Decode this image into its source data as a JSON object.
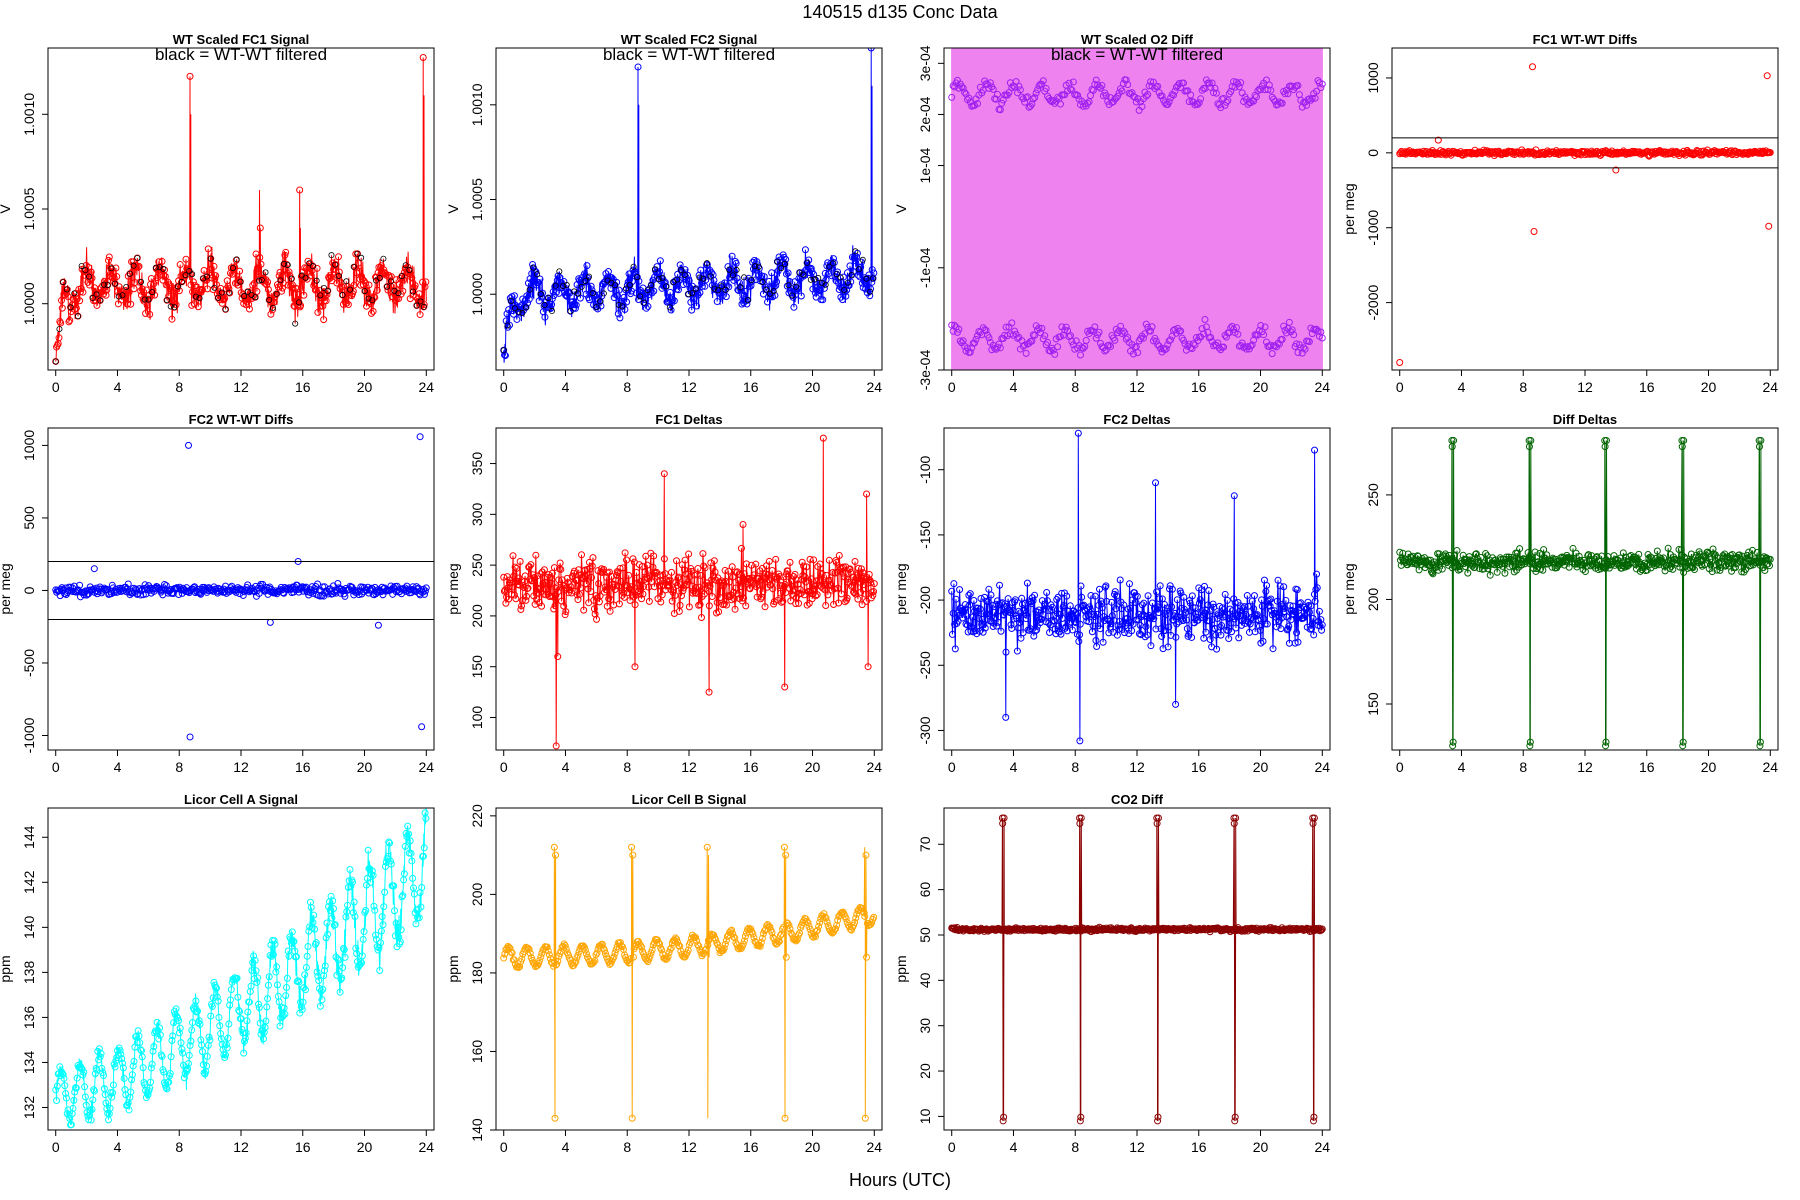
{
  "figure": {
    "suptitle": "140515   d135   Conc Data",
    "xlabel": "Hours (UTC)",
    "note": "black = WT-WT filtered"
  },
  "chart_data": [
    {
      "id": "p1",
      "type": "line",
      "title": "WT Scaled FC1 Signal",
      "ylabel": "V",
      "color": "#ff0000",
      "ylim": [
        0.99965,
        1.00135
      ],
      "yticks": [
        1.0,
        1.0005,
        1.001
      ],
      "ytick_labels": [
        "1.0000",
        "1.0005",
        "1.0010"
      ],
      "note": true,
      "generator": {
        "kind": "noisy_signal",
        "base": 1.00012,
        "wave_amp": 0.0001,
        "wave_period": 1.6,
        "noise": 9e-05,
        "drift": [
          [
            0,
            0.99968
          ],
          [
            0.5,
            1.0
          ],
          [
            1.5,
            1.0001
          ],
          [
            12,
            1.0001
          ],
          [
            24,
            1.0001
          ]
        ],
        "spikes": [
          [
            8.7,
            1.0012
          ],
          [
            23.8,
            1.0013
          ],
          [
            13.2,
            1.0006
          ],
          [
            15.8,
            1.0006
          ]
        ],
        "black_pts": true,
        "seed": 3
      }
    },
    {
      "id": "p2",
      "type": "line",
      "title": "WT Scaled FC2 Signal",
      "ylabel": "V",
      "color": "#0000ff",
      "ylim": [
        0.9996,
        1.0013
      ],
      "yticks": [
        1.0,
        1.0005,
        1.001
      ],
      "ytick_labels": [
        "1.0000",
        "1.0005",
        "1.0010"
      ],
      "note": true,
      "generator": {
        "kind": "noisy_signal",
        "base": 1.00005,
        "wave_amp": 9e-05,
        "wave_period": 1.6,
        "noise": 8e-05,
        "drift": [
          [
            0,
            0.99965
          ],
          [
            0.5,
            0.9999
          ],
          [
            1.5,
            1.0
          ],
          [
            24,
            1.0001
          ]
        ],
        "spikes": [
          [
            8.7,
            1.0012
          ],
          [
            23.8,
            1.0013
          ]
        ],
        "black_pts": true,
        "seed": 5
      }
    },
    {
      "id": "p3",
      "type": "band",
      "title": "WT Scaled O2 Diff",
      "ylabel": "V",
      "color": "#ee82ee",
      "ylim": [
        -0.0003,
        0.00033
      ],
      "yticks": [
        -0.0003,
        -0.0001,
        0.0001,
        0.0002,
        0.0003
      ],
      "ytick_labels": [
        "-3e-04",
        "-1e-04",
        "1e-04",
        "2e-04",
        "3e-04"
      ],
      "note": true,
      "generator": {
        "kind": "two_band",
        "upper": 0.00024,
        "lower": -0.00024,
        "wave_amp": 2e-05,
        "point_color": "#a020f0",
        "seed": 7
      }
    },
    {
      "id": "p4",
      "type": "scatter",
      "title": "FC1 WT-WT Diffs",
      "ylabel": "per meg",
      "color": "#ff0000",
      "ylim": [
        -2900,
        1400
      ],
      "yticks": [
        -2000,
        -1000,
        0,
        1000
      ],
      "ytick_labels": [
        "-2000",
        "-1000",
        "0",
        "1000"
      ],
      "hlines": [
        200,
        -200
      ],
      "generator": {
        "kind": "scatter_noise",
        "center": 0,
        "noise": 30,
        "outliers": [
          [
            0,
            -2800
          ],
          [
            8.6,
            1150
          ],
          [
            8.7,
            -1050
          ],
          [
            23.8,
            1030
          ],
          [
            23.9,
            -980
          ],
          [
            14,
            -230
          ],
          [
            2.5,
            170
          ]
        ],
        "seed": 11
      }
    },
    {
      "id": "p5",
      "type": "scatter",
      "title": "FC2 WT-WT Diffs",
      "ylabel": "per meg",
      "color": "#0000ff",
      "ylim": [
        -1100,
        1120
      ],
      "yticks": [
        -1000,
        -500,
        0,
        500,
        1000
      ],
      "ytick_labels": [
        "-1000",
        "-500",
        "0",
        "500",
        "1000"
      ],
      "hlines": [
        200,
        -200
      ],
      "generator": {
        "kind": "scatter_noise",
        "center": 0,
        "noise": 35,
        "outliers": [
          [
            8.6,
            1000
          ],
          [
            8.7,
            -1010
          ],
          [
            23.6,
            1060
          ],
          [
            23.7,
            -940
          ],
          [
            15.7,
            200
          ],
          [
            13.9,
            -220
          ],
          [
            20.9,
            -240
          ],
          [
            2.5,
            150
          ]
        ],
        "seed": 13
      }
    },
    {
      "id": "p6",
      "type": "line_points",
      "title": "FC1 Deltas",
      "ylabel": "per meg",
      "color": "#ff0000",
      "ylim": [
        68,
        385
      ],
      "yticks": [
        100,
        150,
        200,
        250,
        300,
        350
      ],
      "ytick_labels": [
        "100",
        "150",
        "200",
        "250",
        "300",
        "350"
      ],
      "generator": {
        "kind": "delta",
        "center": 232,
        "noise": 24,
        "spikes": [
          [
            3.4,
            72
          ],
          [
            3.5,
            160
          ],
          [
            8.5,
            150
          ],
          [
            13.3,
            125
          ],
          [
            18.2,
            130
          ],
          [
            20.7,
            375
          ],
          [
            23.5,
            320
          ],
          [
            23.6,
            150
          ],
          [
            10.4,
            340
          ],
          [
            15.5,
            290
          ]
        ],
        "seed": 17
      }
    },
    {
      "id": "p7",
      "type": "line_points",
      "title": "FC2 Deltas",
      "ylabel": "per meg",
      "color": "#0000ff",
      "ylim": [
        -315,
        -68
      ],
      "yticks": [
        -300,
        -250,
        -200,
        -150,
        -100
      ],
      "ytick_labels": [
        "-300",
        "-250",
        "-200",
        "-150",
        "-100"
      ],
      "generator": {
        "kind": "delta",
        "center": -210,
        "noise": 22,
        "spikes": [
          [
            8.2,
            -72
          ],
          [
            8.3,
            -308
          ],
          [
            3.5,
            -290
          ],
          [
            13.2,
            -110
          ],
          [
            23.5,
            -85
          ],
          [
            18.3,
            -120
          ],
          [
            14.5,
            -280
          ]
        ],
        "seed": 19
      }
    },
    {
      "id": "p8",
      "type": "line_points",
      "title": "Diff Deltas",
      "ylabel": "per meg",
      "color": "#006400",
      "ylim": [
        128,
        282
      ],
      "yticks": [
        150,
        200,
        250
      ],
      "ytick_labels": [
        "150",
        "200",
        "250"
      ],
      "generator": {
        "kind": "periodic_spikes",
        "center": 218,
        "noise": 5,
        "events": [
          3.4,
          8.4,
          13.3,
          18.3,
          23.3
        ],
        "hi": 276,
        "lo": 130,
        "seed": 23
      }
    },
    {
      "id": "p9",
      "type": "line_points",
      "title": "Licor Cell A Signal",
      "ylabel": "ppm",
      "color": "#00ffff",
      "ylim": [
        131,
        145.3
      ],
      "yticks": [
        132,
        134,
        136,
        138,
        140,
        142,
        144
      ],
      "ytick_labels": [
        "132",
        "134",
        "136",
        "138",
        "140",
        "142",
        "144"
      ],
      "generator": {
        "kind": "rising_wave",
        "start": 132.5,
        "end": 142.8,
        "wave_amp": 1.7,
        "wave_period": 1.25,
        "noise": 0.4,
        "seed": 29
      }
    },
    {
      "id": "p10",
      "type": "line_points",
      "title": "Licor Cell B Signal",
      "ylabel": "ppm",
      "color": "#ffa500",
      "ylim": [
        140,
        222
      ],
      "yticks": [
        140,
        160,
        180,
        200,
        220
      ],
      "ytick_labels": [
        "140",
        "160",
        "180",
        "200",
        "220"
      ],
      "generator": {
        "kind": "spiky_wave",
        "center": 184,
        "end": 195,
        "wave_amp": 2.5,
        "wave_period": 1.2,
        "events": [
          3.3,
          8.3,
          13.2,
          18.2,
          23.4
        ],
        "hi": 212,
        "lo": 143,
        "seed": 31
      }
    },
    {
      "id": "p11",
      "type": "line_points",
      "title": "CO2 Diff",
      "ylabel": "ppm",
      "color": "#8b0000",
      "ylim": [
        7,
        78
      ],
      "yticks": [
        10,
        20,
        30,
        40,
        50,
        60,
        70
      ],
      "ytick_labels": [
        "10",
        "20",
        "30",
        "40",
        "50",
        "60",
        "70"
      ],
      "generator": {
        "kind": "periodic_spikes",
        "center": 51.2,
        "noise": 0.35,
        "events": [
          3.3,
          8.3,
          13.3,
          18.3,
          23.4
        ],
        "hi": 75.8,
        "lo": 9,
        "seed": 37
      }
    }
  ],
  "xaxis": {
    "xlim": [
      -0.5,
      24.5
    ],
    "ticks": [
      0,
      4,
      8,
      12,
      16,
      20,
      24
    ],
    "labels": [
      "0",
      "4",
      "8",
      "12",
      "16",
      "20",
      "24"
    ]
  }
}
